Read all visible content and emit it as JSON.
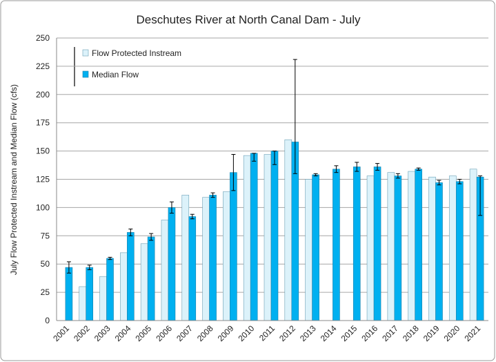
{
  "chart_data": {
    "type": "bar",
    "title": "Deschutes River at North Canal Dam - July",
    "y_label": "July Flow  Protected Instream and Median Flow (cfs)",
    "categories": [
      "2001",
      "2002",
      "2003",
      "2004",
      "2005",
      "2006",
      "2007",
      "2008",
      "2009",
      "2010",
      "2011",
      "2012",
      "2013",
      "2014",
      "2015",
      "2016",
      "2017",
      "2018",
      "2019",
      "2020",
      "2021"
    ],
    "series": [
      {
        "name": "Flow Protected Instream",
        "color": "#dcf2fa",
        "values": [
          null,
          30,
          39,
          60,
          68,
          89,
          111,
          109,
          114,
          146,
          147,
          160,
          125,
          null,
          null,
          128,
          131,
          132,
          127,
          128,
          134
        ]
      },
      {
        "name": "Median Flow",
        "color": "#00b0f0",
        "values": [
          47,
          47,
          55,
          78,
          74,
          100,
          92,
          111,
          131,
          148,
          150,
          158,
          129,
          134,
          136,
          136,
          128,
          134,
          122,
          123,
          127
        ],
        "error_plus": [
          5,
          2,
          1,
          3,
          3,
          5,
          2,
          2,
          16,
          0,
          0,
          73,
          1,
          3,
          4,
          3,
          2,
          1,
          2,
          2,
          1
        ],
        "error_minus": [
          5,
          2,
          1,
          3,
          3,
          5,
          2,
          2,
          16,
          7,
          12,
          28,
          1,
          3,
          4,
          3,
          2,
          1,
          2,
          2,
          34
        ]
      }
    ],
    "ylim": [
      0,
      250
    ],
    "yticks": [
      0,
      25,
      50,
      75,
      100,
      125,
      150,
      175,
      200,
      225,
      250
    ],
    "grid": true
  }
}
